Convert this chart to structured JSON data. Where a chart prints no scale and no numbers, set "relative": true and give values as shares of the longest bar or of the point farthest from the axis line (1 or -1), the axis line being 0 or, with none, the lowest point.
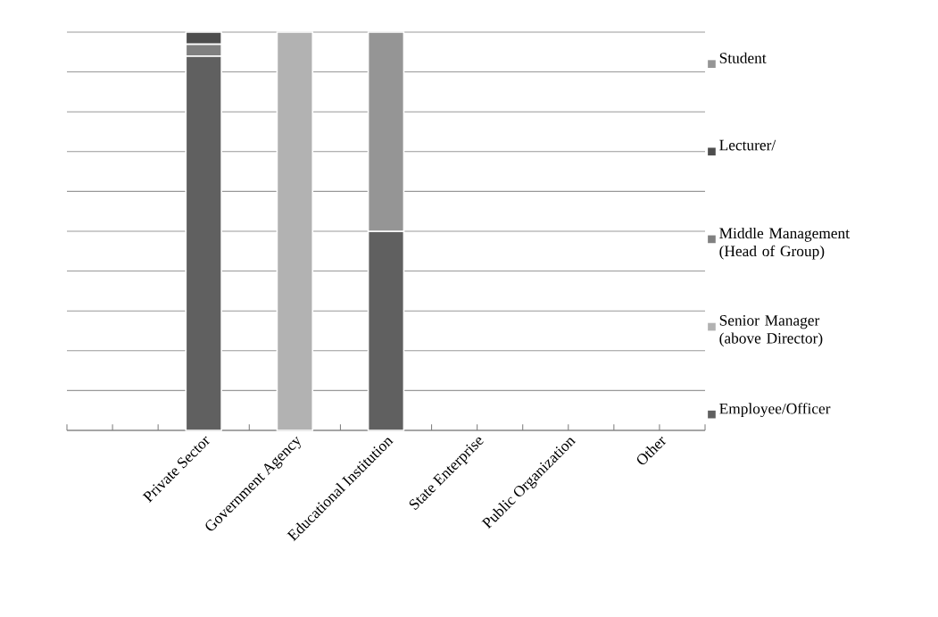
{
  "chart_data": {
    "type": "bar",
    "stacked": true,
    "relative": true,
    "grid": "y",
    "legend": "right",
    "categories": [
      null,
      "Private Sector",
      "Government Agency",
      "Educational Institution",
      "State Enterprise",
      "Public Organization",
      "Other"
    ],
    "series": [
      {
        "name": "Employee/Officer",
        "color": "#606060",
        "values": [
          null,
          0.94,
          null,
          0.5,
          null,
          null,
          null
        ]
      },
      {
        "name": "Senior Manager (above Director)",
        "color": "#b2b2b2",
        "values": [
          null,
          null,
          1,
          null,
          null,
          null,
          null
        ]
      },
      {
        "name": "Middle Management (Head of Group)",
        "color": "#808080",
        "values": [
          null,
          0.03,
          null,
          null,
          null,
          null,
          null
        ]
      },
      {
        "name": "Lecturer/",
        "color": "#4d4d4d",
        "values": [
          null,
          0.03,
          null,
          null,
          null,
          null,
          null
        ]
      },
      {
        "name": "Student",
        "color": "#959595",
        "values": [
          null,
          null,
          null,
          0.5,
          null,
          null,
          null
        ]
      }
    ]
  }
}
